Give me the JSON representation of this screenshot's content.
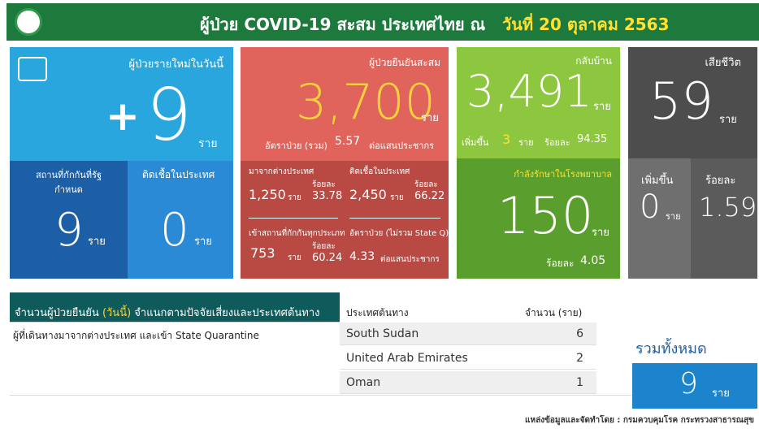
{
  "header": {
    "title": "ผู้ป่วย COVID-19 สะสม ประเทศไทย ณ",
    "date": "วันที่ 20 ตุลาคม 2563"
  },
  "new_cases": {
    "label": "ผู้ป่วยรายใหม่ในวันนี้",
    "prefix": "+",
    "value": 9,
    "unit": "ราย",
    "quarantine": {
      "label": "สถานที่กักกันที่รัฐกำหนด",
      "value": 9,
      "unit": "ราย"
    },
    "local": {
      "label": "ติดเชื้อในประเทศ",
      "value": 0,
      "unit": "ราย"
    }
  },
  "confirmed": {
    "label": "ผู้ป่วยยืนยันสะสม",
    "value": "3,700",
    "unit": "ราย",
    "rate_label": "อัตราป่วย (รวม)",
    "rate": 5.57,
    "rate_unit": "ต่อแสนประชากร",
    "abroad": {
      "label": "มาจากต่างประเทศ",
      "value": "1,250",
      "unit": "ราย",
      "pct_label": "ร้อยละ",
      "pct": 33.78
    },
    "domestic": {
      "label": "ติดเชื้อในประเทศ",
      "value": "2,450",
      "unit": "ราย",
      "pct_label": "ร้อยละ",
      "pct": 66.22
    },
    "quarantine": {
      "label": "เข้าสถานที่กักกันทุกประเภท",
      "value": 753,
      "unit": "ราย",
      "pct_label": "ร้อยละ",
      "pct": 60.24
    },
    "rate_excl": {
      "label": "อัตราป่วย (ไม่รวม State Q)",
      "value": 4.33,
      "unit": "ต่อแสนประชากร"
    }
  },
  "recovered": {
    "label": "กลับบ้าน",
    "value": "3,491",
    "unit": "ราย",
    "inc_label": "เพิ่มขึ้น",
    "inc": 3,
    "inc_unit": "ราย",
    "pct_label": "ร้อยละ",
    "pct": 94.35
  },
  "hospital": {
    "label": "กำลังรักษาในโรงพยาบาล",
    "value": 150,
    "unit": "ราย",
    "pct_label": "ร้อยละ",
    "pct": 4.05
  },
  "deaths": {
    "label": "เสียชีวิต",
    "value": 59,
    "unit": "ราย",
    "inc_label": "เพิ่มขึ้น",
    "inc": 0,
    "inc_unit": "ราย",
    "pct_label": "ร้อยละ",
    "pct": 1.59
  },
  "breakdown": {
    "title_a": "จำนวนผู้ป่วยยืนยัน",
    "title_b": "(วันนี้)",
    "title_c": "จำแนกตามปัจจัยเสี่ยงและประเทศต้นทาง",
    "group": "ผู้ที่เดินทางมาจากต่างประเทศ และเข้า State Quarantine",
    "columns": [
      "ประเทศต้นทาง",
      "จำนวน (ราย)"
    ],
    "rows": [
      [
        "South Sudan",
        6
      ],
      [
        "United Arab Emirates",
        2
      ],
      [
        "Oman",
        1
      ]
    ],
    "total_label": "รวมทั้งหมด",
    "total": 9,
    "total_unit": "ราย"
  },
  "source": "แหล่งข้อมูลและจัดทำโดย : กรมควบคุมโรค กระทรวงสาธารณสุข"
}
